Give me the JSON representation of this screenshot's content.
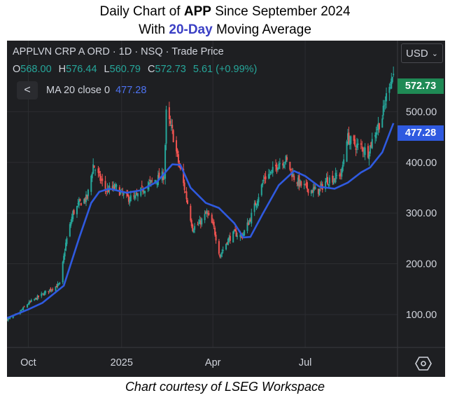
{
  "title": {
    "line1_prefix": "Daily Chart of ",
    "ticker": "APP",
    "line1_suffix": " Since September 2024",
    "line2_prefix": "With ",
    "ma_emphasis": "20-Day",
    "line2_suffix": " Moving Average"
  },
  "header": {
    "instrument": "APPLVN CRP A ORD · 1D · NSQ · Trade Price",
    "ohlc": {
      "o_label": "O",
      "o_value": "568.00",
      "h_label": "H",
      "h_value": "576.44",
      "l_label": "L",
      "l_value": "560.79",
      "c_label": "C",
      "c_value": "572.73",
      "change": "5.61 (+0.99%)"
    }
  },
  "ma_legend": {
    "back": "<",
    "label": "MA 20 close 0",
    "value": "477.28"
  },
  "currency": {
    "label": "USD",
    "chevron": "⌄"
  },
  "price_tags": {
    "last": "572.73",
    "ma": "477.28"
  },
  "caption": "Chart courtesy of LSEG Workspace",
  "colors": {
    "background": "#1e1f22",
    "up": "#26a69a",
    "down": "#ef5350",
    "ma_line": "#2f5ae0",
    "grid": "#2c2d31",
    "last_tag": "#1f8a55",
    "title_accent": "#3a3fc4"
  },
  "icons": {
    "back": "chevron-left-icon",
    "settings": "settings-hexagon-icon",
    "currency": "chevron-down-icon"
  },
  "chart_data": {
    "type": "candlestick",
    "title": "Daily Chart of APP Since September 2024 With 20-Day Moving Average",
    "x_axis_labels": [
      "Oct",
      "2025",
      "Apr",
      "Jul"
    ],
    "x_axis_label_dates": [
      "2024-10-01",
      "2025-01-01",
      "2025-04-01",
      "2025-07-01"
    ],
    "y_axis_ticks": [
      100,
      200,
      300,
      400,
      500
    ],
    "y_tick_labels": [
      "100.00",
      "200.00",
      "300.00",
      "400.00",
      "500.00"
    ],
    "ylim": [
      35,
      640
    ],
    "x_range": [
      "2024-09-10",
      "2025-09-30"
    ],
    "grid": true,
    "last_close": 572.73,
    "series": [
      {
        "name": "APPLVN CRP A ORD",
        "kind": "close",
        "points": [
          [
            "2024-09-10",
            90
          ],
          [
            "2024-09-20",
            100
          ],
          [
            "2024-10-01",
            122
          ],
          [
            "2024-10-15",
            140
          ],
          [
            "2024-11-01",
            160
          ],
          [
            "2024-11-07",
            240
          ],
          [
            "2024-11-14",
            300
          ],
          [
            "2024-11-21",
            320
          ],
          [
            "2024-11-28",
            330
          ],
          [
            "2024-12-04",
            395
          ],
          [
            "2024-12-10",
            370
          ],
          [
            "2024-12-17",
            345
          ],
          [
            "2024-12-26",
            350
          ],
          [
            "2025-01-06",
            330
          ],
          [
            "2025-01-15",
            330
          ],
          [
            "2025-01-23",
            350
          ],
          [
            "2025-02-03",
            365
          ],
          [
            "2025-02-12",
            375
          ],
          [
            "2025-02-14",
            495
          ],
          [
            "2025-02-20",
            460
          ],
          [
            "2025-02-26",
            400
          ],
          [
            "2025-03-05",
            340
          ],
          [
            "2025-03-12",
            270
          ],
          [
            "2025-03-19",
            280
          ],
          [
            "2025-03-26",
            300
          ],
          [
            "2025-04-02",
            270
          ],
          [
            "2025-04-08",
            215
          ],
          [
            "2025-04-15",
            245
          ],
          [
            "2025-04-22",
            260
          ],
          [
            "2025-04-30",
            255
          ],
          [
            "2025-05-08",
            290
          ],
          [
            "2025-05-15",
            330
          ],
          [
            "2025-05-22",
            370
          ],
          [
            "2025-05-29",
            380
          ],
          [
            "2025-06-05",
            400
          ],
          [
            "2025-06-12",
            405
          ],
          [
            "2025-06-20",
            370
          ],
          [
            "2025-06-27",
            355
          ],
          [
            "2025-07-07",
            345
          ],
          [
            "2025-07-15",
            345
          ],
          [
            "2025-07-22",
            365
          ],
          [
            "2025-07-30",
            370
          ],
          [
            "2025-08-06",
            380
          ],
          [
            "2025-08-11",
            450
          ],
          [
            "2025-08-18",
            435
          ],
          [
            "2025-08-25",
            430
          ],
          [
            "2025-09-01",
            420
          ],
          [
            "2025-09-08",
            460
          ],
          [
            "2025-09-15",
            490
          ],
          [
            "2025-09-22",
            560
          ],
          [
            "2025-09-26",
            572.73
          ]
        ]
      },
      {
        "name": "MA 20 close 0",
        "kind": "line",
        "points": [
          [
            "2024-09-10",
            93
          ],
          [
            "2024-10-01",
            110
          ],
          [
            "2024-10-15",
            123
          ],
          [
            "2024-11-05",
            157
          ],
          [
            "2024-11-20",
            250
          ],
          [
            "2024-12-02",
            320
          ],
          [
            "2024-12-10",
            342
          ],
          [
            "2024-12-20",
            348
          ],
          [
            "2025-01-06",
            340
          ],
          [
            "2025-01-20",
            345
          ],
          [
            "2025-02-05",
            362
          ],
          [
            "2025-02-20",
            396
          ],
          [
            "2025-02-28",
            395
          ],
          [
            "2025-03-10",
            350
          ],
          [
            "2025-03-25",
            320
          ],
          [
            "2025-04-07",
            310
          ],
          [
            "2025-04-22",
            280
          ],
          [
            "2025-05-01",
            252
          ],
          [
            "2025-05-08",
            253
          ],
          [
            "2025-05-20",
            298
          ],
          [
            "2025-06-05",
            355
          ],
          [
            "2025-06-20",
            383
          ],
          [
            "2025-07-01",
            373
          ],
          [
            "2025-07-15",
            352
          ],
          [
            "2025-07-30",
            348
          ],
          [
            "2025-08-12",
            360
          ],
          [
            "2025-08-25",
            380
          ],
          [
            "2025-09-03",
            390
          ],
          [
            "2025-09-15",
            420
          ],
          [
            "2025-09-26",
            477.28
          ]
        ]
      }
    ]
  }
}
